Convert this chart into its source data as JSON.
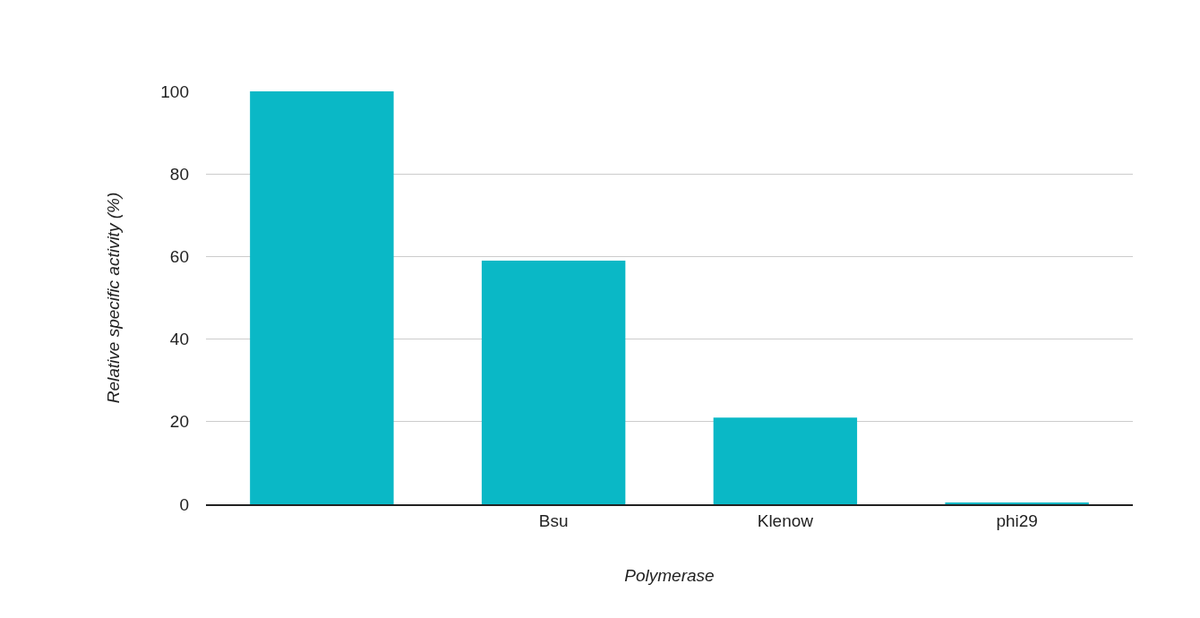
{
  "chart_data": {
    "type": "bar",
    "xlabel": "Polymerase",
    "ylabel": "Relative specific activity (%)",
    "categories": [
      null,
      "Bsu",
      "Klenow",
      "phi29"
    ],
    "values": [
      100,
      59,
      21,
      0.3
    ],
    "color": "#0ab8c6",
    "ylim": [
      0,
      100
    ],
    "yticks": [
      0,
      20,
      40,
      60,
      80,
      100
    ],
    "grid": "y",
    "legend": false
  }
}
